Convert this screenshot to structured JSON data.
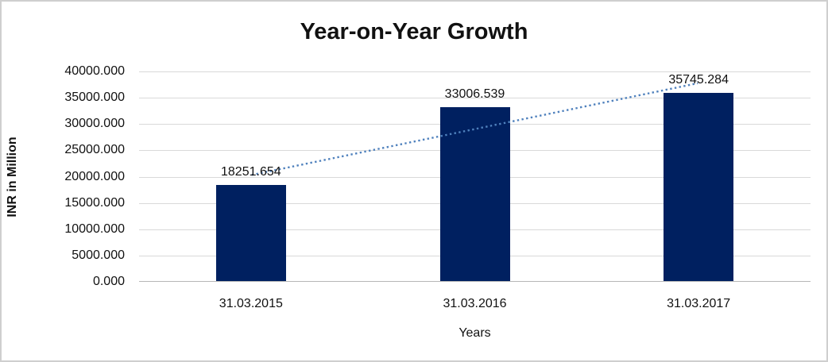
{
  "chart_data": {
    "type": "bar",
    "title": "Year-on-Year Growth",
    "xlabel": "Years",
    "ylabel": "INR in Million",
    "categories": [
      "31.03.2015",
      "31.03.2016",
      "31.03.2017"
    ],
    "values": [
      18251.654,
      33006.539,
      35745.284
    ],
    "data_labels": [
      "18251.654",
      "33006.539",
      "35745.284"
    ],
    "ylim": [
      0,
      40000
    ],
    "ytick_step": 5000,
    "ytick_labels": [
      "0.000",
      "5000.000",
      "10000.000",
      "15000.000",
      "20000.000",
      "25000.000",
      "30000.000",
      "35000.000",
      "40000.000"
    ],
    "grid": "horizontal",
    "legend": "none",
    "bar_color": "#002060",
    "gridline_color": "#d9d9d9",
    "axis_line_color": "#b7b7b7",
    "trendline": {
      "type": "linear",
      "style": "dotted",
      "color": "#4f81bd",
      "start_value": 20253.0,
      "end_value": 37746.6
    }
  }
}
